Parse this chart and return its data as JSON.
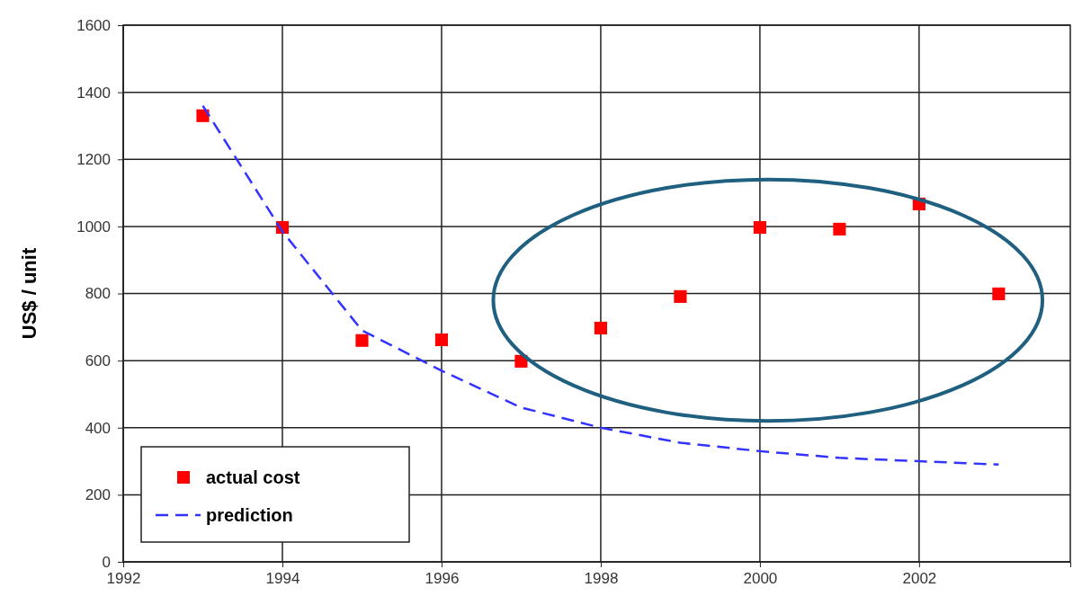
{
  "chart_data": {
    "type": "scatter",
    "ylabel": "US$ / unit",
    "x": [
      1993,
      1994,
      1995,
      1996,
      1997,
      1998,
      1999,
      2000,
      2001,
      2002,
      2003
    ],
    "series": [
      {
        "name": "actual cost",
        "color": "#ff0000",
        "marker": "square",
        "values": [
          1330,
          997,
          660,
          662,
          598,
          697,
          791,
          997,
          992,
          1067,
          799
        ]
      },
      {
        "name": "prediction",
        "type": "line",
        "color": "#3333ff",
        "line_style": "dashed",
        "values": [
          1360,
          985,
          690,
          570,
          460,
          400,
          355,
          330,
          310,
          300,
          290
        ]
      }
    ],
    "xlim": [
      1992,
      2003.9
    ],
    "xticks": [
      1992,
      1994,
      1996,
      1998,
      2000,
      2002
    ],
    "ylim": [
      0,
      1600
    ],
    "yticks": [
      0,
      200,
      400,
      600,
      800,
      1000,
      1200,
      1400,
      1600
    ],
    "grid": true,
    "legend": "bottom left"
  }
}
